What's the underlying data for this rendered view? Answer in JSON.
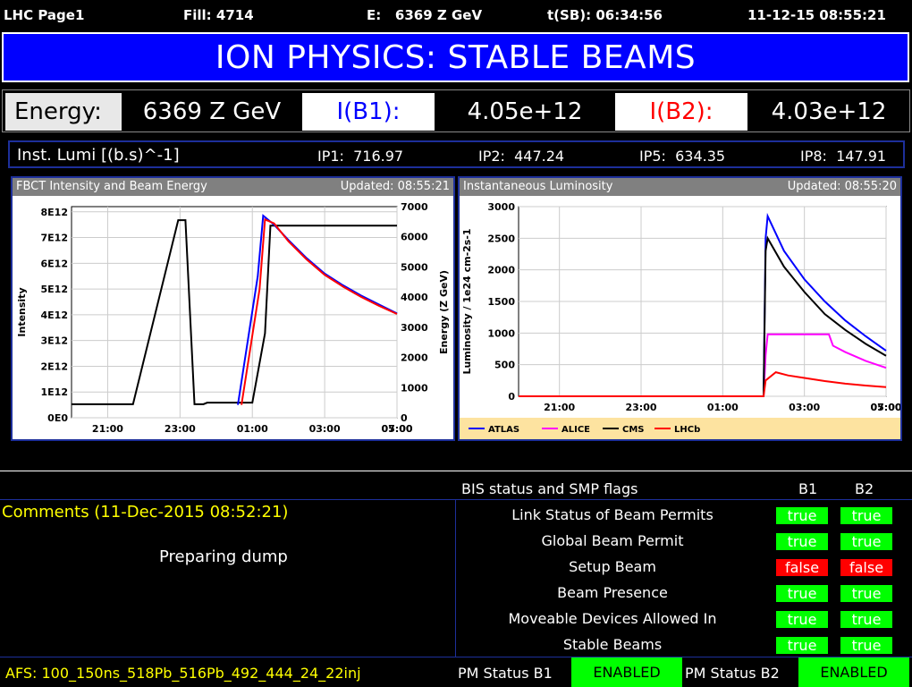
{
  "header": {
    "page": "LHC Page1",
    "fill": "Fill: 4714",
    "energy": "E:   6369 Z GeV",
    "tsb": "t(SB): 06:34:56",
    "datetime": "11-12-15 08:55:21"
  },
  "banner": {
    "title": "ION PHYSICS: STABLE BEAMS"
  },
  "beam_row": {
    "energy_label": "Energy:",
    "energy_value": "6369 Z GeV",
    "ib1_label": "I(B1):",
    "ib1_value": "4.05e+12",
    "ib2_label": "I(B2):",
    "ib2_value": "4.03e+12"
  },
  "lumi_row": {
    "label": "Inst. Lumi [(b.s)^-1]",
    "ip1": "IP1:  716.97",
    "ip2": "IP2:  447.24",
    "ip5": "IP5:  634.35",
    "ip8": "IP8:  147.91"
  },
  "colors": {
    "blue": "#0000ff",
    "red": "#ff0000",
    "green": "#00ff00",
    "yellow": "#ffff00",
    "magenta": "#ff00ff"
  },
  "chart_data": [
    {
      "type": "line",
      "title": "FBCT Intensity and Beam Energy",
      "updated": "Updated: 08:55:21",
      "ylabel": "Intensity",
      "y2label": "Energy (Z GeV)",
      "xticks": [
        "21:00",
        "23:00",
        "01:00",
        "03:00",
        "05:00",
        "07:00"
      ],
      "yticks": [
        "0E0",
        "1E12",
        "2E12",
        "3E12",
        "4E12",
        "5E12",
        "6E12",
        "7E12",
        "8E12"
      ],
      "y2ticks": [
        "0",
        "1000",
        "2000",
        "3000",
        "4000",
        "5000",
        "6000",
        "7000"
      ],
      "xlim": [
        20.0,
        29.0
      ],
      "ylim": [
        0,
        8200000000000.0
      ],
      "y2lim": [
        0,
        7000
      ],
      "series": [
        {
          "axis": "y2",
          "color": "#000000",
          "x": [
            20.0,
            21.7,
            22.95,
            23.15,
            23.4,
            23.65,
            23.75,
            24.75,
            25.0,
            25.35,
            25.5,
            25.6,
            26.0,
            29.0
          ],
          "y": [
            450,
            450,
            6550,
            6550,
            450,
            450,
            500,
            500,
            500,
            2800,
            6370,
            6370,
            6370,
            6370
          ]
        },
        {
          "axis": "y",
          "color": "#0000ff",
          "x": [
            24.6,
            25.15,
            25.3,
            25.6,
            26.0,
            26.5,
            27.0,
            27.5,
            28.0,
            28.5,
            29.0
          ],
          "y": [
            500000000000.0,
            5500000000000.0,
            7850000000000.0,
            7500000000000.0,
            6900000000000.0,
            6200000000000.0,
            5600000000000.0,
            5150000000000.0,
            4750000000000.0,
            4400000000000.0,
            4050000000000.0
          ]
        },
        {
          "axis": "y",
          "color": "#ff0000",
          "x": [
            24.7,
            25.2,
            25.35,
            25.6,
            26.0,
            26.5,
            27.0,
            27.5,
            28.0,
            28.5,
            29.0
          ],
          "y": [
            500000000000.0,
            5000000000000.0,
            7700000000000.0,
            7550000000000.0,
            6850000000000.0,
            6150000000000.0,
            5550000000000.0,
            5100000000000.0,
            4700000000000.0,
            4350000000000.0,
            4030000000000.0
          ]
        }
      ]
    },
    {
      "type": "line",
      "title": "Instantaneous Luminosity",
      "updated": "Updated: 08:55:20",
      "ylabel": "Luminosity / 1e24 cm-2s-1",
      "xticks": [
        "21:00",
        "23:00",
        "01:00",
        "03:00",
        "05:00",
        "07:00"
      ],
      "yticks": [
        "0",
        "500",
        "1000",
        "1500",
        "2000",
        "2500",
        "3000"
      ],
      "xlim": [
        20.0,
        29.0
      ],
      "ylim": [
        0,
        3000
      ],
      "legend": [
        "ATLAS",
        "ALICE",
        "CMS",
        "LHCb"
      ],
      "series": [
        {
          "name": "ATLAS",
          "color": "#0000ff",
          "x": [
            20.0,
            26.0,
            26.05,
            26.1,
            26.5,
            27.0,
            27.5,
            28.0,
            28.5,
            29.0
          ],
          "y": [
            0,
            0,
            2500,
            2850,
            2300,
            1850,
            1500,
            1200,
            950,
            720
          ]
        },
        {
          "name": "ALICE",
          "color": "#ff00ff",
          "x": [
            20.0,
            26.0,
            26.05,
            26.1,
            27.6,
            27.7,
            28.0,
            28.5,
            29.0
          ],
          "y": [
            0,
            0,
            650,
            980,
            980,
            800,
            700,
            560,
            450
          ]
        },
        {
          "name": "CMS",
          "color": "#000000",
          "x": [
            20.0,
            26.0,
            26.05,
            26.1,
            26.5,
            27.0,
            27.5,
            28.0,
            28.5,
            29.0
          ],
          "y": [
            0,
            0,
            2300,
            2500,
            2050,
            1650,
            1300,
            1050,
            830,
            640
          ]
        },
        {
          "name": "LHCb",
          "color": "#ff0000",
          "x": [
            20.0,
            26.0,
            26.05,
            26.3,
            26.6,
            27.0,
            27.5,
            28.0,
            28.5,
            29.0
          ],
          "y": [
            0,
            0,
            250,
            380,
            330,
            290,
            240,
            200,
            170,
            145
          ]
        }
      ]
    }
  ],
  "bis": {
    "title": "BIS status and SMP flags",
    "b1": "B1",
    "b2": "B2",
    "flags": [
      {
        "label": "Link Status of Beam Permits",
        "b1": "true",
        "b2": "true"
      },
      {
        "label": "Global Beam Permit",
        "b1": "true",
        "b2": "true"
      },
      {
        "label": "Setup Beam",
        "b1": "false",
        "b2": "false"
      },
      {
        "label": "Beam Presence",
        "b1": "true",
        "b2": "true"
      },
      {
        "label": "Moveable Devices Allowed In",
        "b1": "true",
        "b2": "true"
      },
      {
        "label": "Stable Beams",
        "b1": "true",
        "b2": "true"
      }
    ]
  },
  "comments": {
    "title": "Comments (11-Dec-2015 08:52:21)",
    "text": "Preparing dump"
  },
  "footer": {
    "afs": "AFS: 100_150ns_518Pb_516Pb_492_444_24_22inj",
    "pm_b1_label": "PM Status B1",
    "pm_b1_value": "ENABLED",
    "pm_b2_label": "PM Status B2",
    "pm_b2_value": "ENABLED"
  }
}
